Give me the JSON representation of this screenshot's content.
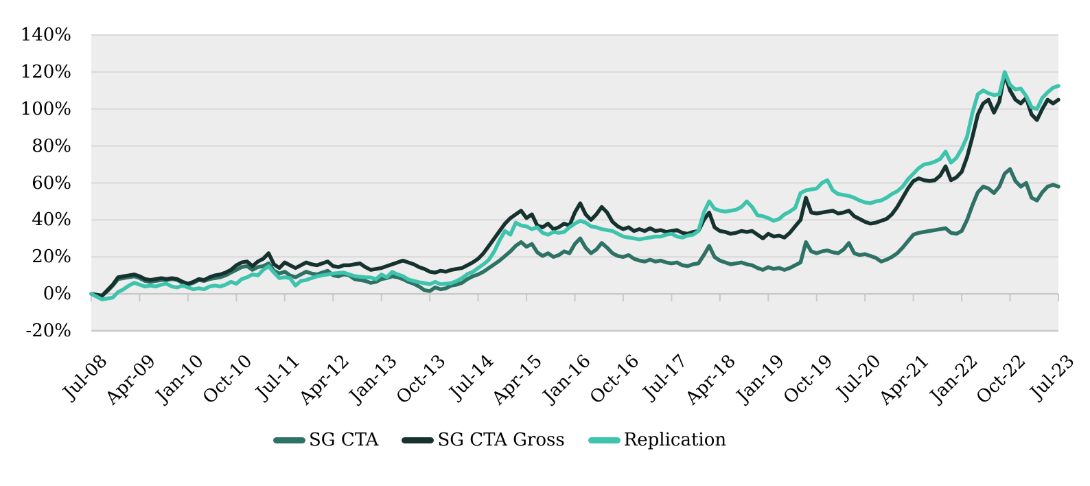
{
  "chart_data": {
    "type": "line",
    "title": "",
    "legend_position": "bottom",
    "grid": true,
    "plot_bg_color": "#EDEDED",
    "grid_color": "#D9D9D9",
    "axis_line_color": "#C9C9C9",
    "y_axis": {
      "min": -20,
      "max": 140,
      "step": 20,
      "unit": "%",
      "tick_labels": [
        "140%",
        "120%",
        "100%",
        "80%",
        "60%",
        "40%",
        "20%",
        "0%",
        "-20%"
      ]
    },
    "x_axis": {
      "tick_labels": [
        "Jul-08",
        "Apr-09",
        "Jan-10",
        "Oct-10",
        "Jul-11",
        "Apr-12",
        "Jan-13",
        "Oct-13",
        "Jul-14",
        "Apr-15",
        "Jan-16",
        "Oct-16",
        "Jul-17",
        "Apr-18",
        "Jan-19",
        "Oct-19",
        "Jul-20",
        "Apr-21",
        "Jan-22",
        "Oct-22",
        "Jul-23"
      ],
      "months_per_tick": 9,
      "points_per_series": 181
    },
    "series": [
      {
        "name": "SG CTA",
        "color": "#2E7165",
        "values": [
          0,
          -0.5,
          -1,
          1.5,
          4.5,
          8,
          8.5,
          9,
          9.5,
          8.5,
          7,
          6.5,
          7,
          7.5,
          7.5,
          8,
          7.5,
          6,
          5,
          6,
          7.5,
          7,
          8,
          8.5,
          9,
          10,
          11.5,
          13,
          14.5,
          15,
          13,
          14.5,
          15,
          16.5,
          12.5,
          11,
          12,
          10,
          9,
          10.5,
          12,
          11,
          10.5,
          11.5,
          12.5,
          10,
          9.5,
          10.5,
          10,
          8,
          7.5,
          7,
          6,
          6.5,
          8,
          8.5,
          9.5,
          9,
          8,
          6.5,
          5.5,
          4,
          2,
          1.5,
          3.5,
          2.5,
          3,
          4.5,
          5,
          6,
          8,
          9.5,
          10.5,
          12,
          14,
          16,
          18,
          20.5,
          23,
          26,
          28,
          25.5,
          27,
          22.5,
          20.5,
          22,
          20,
          21,
          23,
          22,
          27,
          30,
          25,
          22,
          24,
          27.5,
          25,
          22,
          20.5,
          20,
          21,
          19,
          18,
          17.5,
          18.5,
          17.5,
          18,
          17,
          16.5,
          17,
          15.5,
          15,
          16,
          16.5,
          21,
          26,
          20,
          18,
          17,
          16,
          16.5,
          17,
          16,
          15.5,
          14,
          13,
          14.5,
          13.5,
          14,
          13,
          14,
          15.5,
          17,
          28,
          23,
          22,
          23,
          23.5,
          22.5,
          22,
          24,
          27.5,
          22,
          21,
          21.5,
          20.5,
          19.5,
          17.5,
          18.5,
          20,
          22,
          25,
          28.5,
          32,
          33,
          33.5,
          34,
          34.5,
          35,
          35.5,
          33,
          32.5,
          34,
          40,
          48,
          55,
          58,
          57,
          54.5,
          58,
          65,
          67.5,
          61,
          58,
          60,
          52,
          50.5,
          55,
          58,
          59,
          58
        ]
      },
      {
        "name": "SG CTA Gross",
        "color": "#16322E",
        "values": [
          0,
          -0.5,
          -1,
          2,
          5,
          9,
          9.5,
          10,
          10.5,
          9.5,
          8,
          7.5,
          8,
          8.5,
          8,
          8.5,
          8,
          6.5,
          5.5,
          6.5,
          8,
          7.5,
          9,
          10,
          10.5,
          11.5,
          13,
          15.5,
          17,
          17.5,
          15,
          17.5,
          19,
          22,
          16,
          14,
          17,
          15.5,
          14,
          15.5,
          17,
          16,
          15.5,
          16.5,
          17.5,
          15,
          14.5,
          15.5,
          15.5,
          16,
          16.5,
          14.5,
          13,
          13.5,
          14,
          15,
          16,
          17,
          18,
          17,
          16,
          14.5,
          13.5,
          12,
          11.5,
          12.5,
          12,
          13,
          13.5,
          14,
          15.5,
          17,
          19,
          22,
          26,
          30,
          34,
          38,
          41,
          43,
          45,
          41,
          43,
          37,
          36,
          38,
          35,
          36,
          38,
          37,
          44,
          49,
          43,
          40,
          43,
          47,
          44,
          39,
          36.5,
          35,
          36,
          34,
          35,
          34,
          35.5,
          34,
          34.5,
          33.5,
          34,
          34.5,
          33,
          32.5,
          33.5,
          34,
          40,
          44,
          36,
          34,
          33.5,
          32.5,
          33,
          34,
          33.5,
          34,
          32,
          30,
          32.5,
          31,
          31.5,
          30.5,
          33,
          36.5,
          40,
          52,
          44,
          43.5,
          44,
          44.5,
          45,
          43.5,
          44,
          45,
          42,
          40.5,
          39,
          38,
          38.5,
          39.5,
          40.5,
          43,
          47,
          52,
          57,
          61,
          62.5,
          61.5,
          61,
          61.5,
          64,
          69,
          61.5,
          63,
          66,
          74,
          85,
          97,
          103,
          105,
          98,
          104,
          119,
          110,
          105,
          103,
          106,
          97,
          94,
          100,
          105,
          103,
          105
        ]
      },
      {
        "name": "Replication",
        "color": "#3EC3AC",
        "values": [
          0,
          -1.5,
          -3,
          -2.5,
          -2,
          1,
          2.5,
          4.5,
          6,
          5,
          4,
          4.5,
          4,
          5,
          5.5,
          4,
          3.5,
          4.5,
          3.5,
          2.5,
          3,
          2.5,
          4,
          4.5,
          4,
          5,
          6.5,
          5.5,
          8,
          9,
          10.5,
          10,
          13,
          15,
          11.5,
          8.5,
          9,
          8.5,
          4.5,
          7,
          7.5,
          8.5,
          9.5,
          10,
          10.5,
          11,
          11.3,
          11.5,
          10.5,
          9.6,
          9.2,
          9,
          8.9,
          8,
          10.5,
          9,
          11.9,
          10.5,
          9.6,
          7.8,
          7,
          6.3,
          5.8,
          5.2,
          6.5,
          5.2,
          5.5,
          5.8,
          7,
          8.5,
          10.7,
          11.9,
          14,
          16,
          18.5,
          23,
          29,
          34,
          32,
          38.5,
          37,
          36.5,
          35,
          36,
          33,
          32,
          33.5,
          33,
          33.5,
          36,
          38,
          39.5,
          38.5,
          36.5,
          36,
          35,
          34.5,
          34,
          32.5,
          31,
          30.5,
          30,
          29.5,
          30,
          30.5,
          31,
          31,
          32,
          32.5,
          31,
          30.5,
          31.5,
          32,
          34,
          44,
          50,
          46,
          45,
          44.5,
          45,
          45.5,
          47,
          50,
          47,
          42.5,
          42,
          41,
          39.5,
          40.5,
          43,
          44.5,
          46.5,
          54.5,
          56,
          56.5,
          57,
          60,
          61.5,
          56,
          54,
          53.5,
          53,
          52,
          50.5,
          49.5,
          49,
          50,
          50.5,
          52,
          54,
          55.5,
          58,
          62,
          65,
          68,
          70,
          70.5,
          71.5,
          73,
          77,
          71,
          73.5,
          78.5,
          85,
          98,
          108,
          110,
          108.5,
          107.5,
          108,
          120,
          113,
          110.5,
          111,
          107,
          101,
          100,
          106,
          109,
          111.5,
          112.5
        ]
      }
    ]
  }
}
